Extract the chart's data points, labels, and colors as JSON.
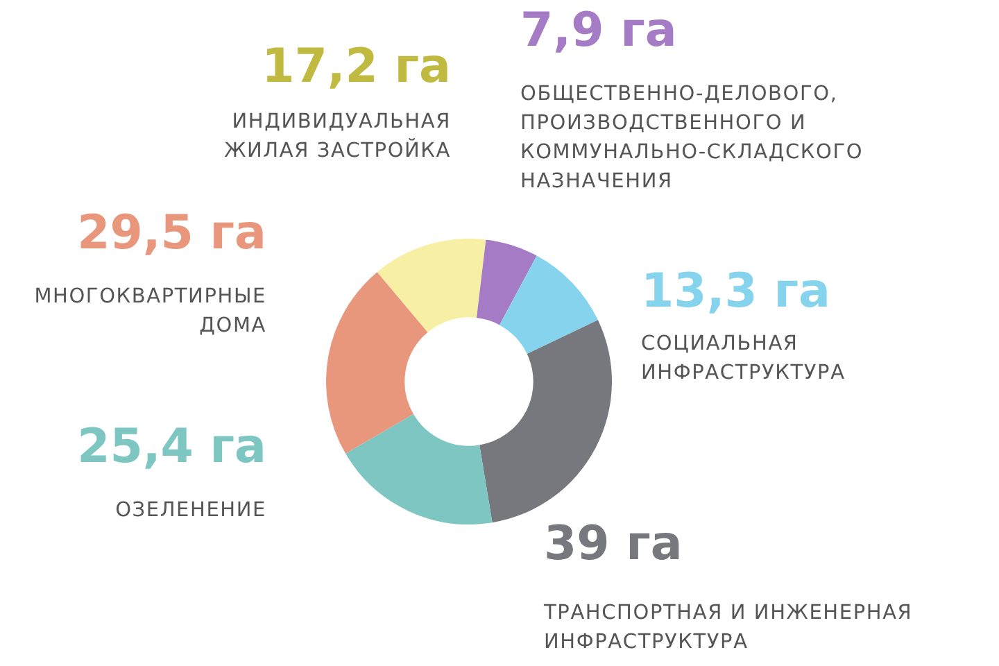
{
  "chart_data": {
    "type": "donut",
    "categories": [
      "ИНДИВИДУАЛЬНАЯ ЖИЛАЯ ЗАСТРОЙКА",
      "ОБЩЕСТВЕННО-ДЕЛОВОГО, ПРОИЗВОДСТВЕННОГО И КОММУНАЛЬНО-СКЛАДСКОГО НАЗНАЧЕНИЯ",
      "СОЦИАЛЬНАЯ ИНФРАСТРУКТУРА",
      "ТРАНСПОРТНАЯ И ИНЖЕНЕРНАЯ ИНФРАСТРУКТУРА",
      "ОЗЕЛЕНЕНИЕ",
      "МНОГОКВАРТИРНЫЕ ДОМА"
    ],
    "values": [
      17.2,
      7.9,
      13.3,
      39,
      25.4,
      29.5
    ],
    "value_labels": [
      "17,2 га",
      "7,9 га",
      "13,3 га",
      "39 га",
      "25,4 га",
      "29,5 га"
    ],
    "colors": [
      "#f7efa3",
      "#a47bc4",
      "#86d3ee",
      "#77787e",
      "#7dc6c1",
      "#e8977d"
    ]
  }
}
